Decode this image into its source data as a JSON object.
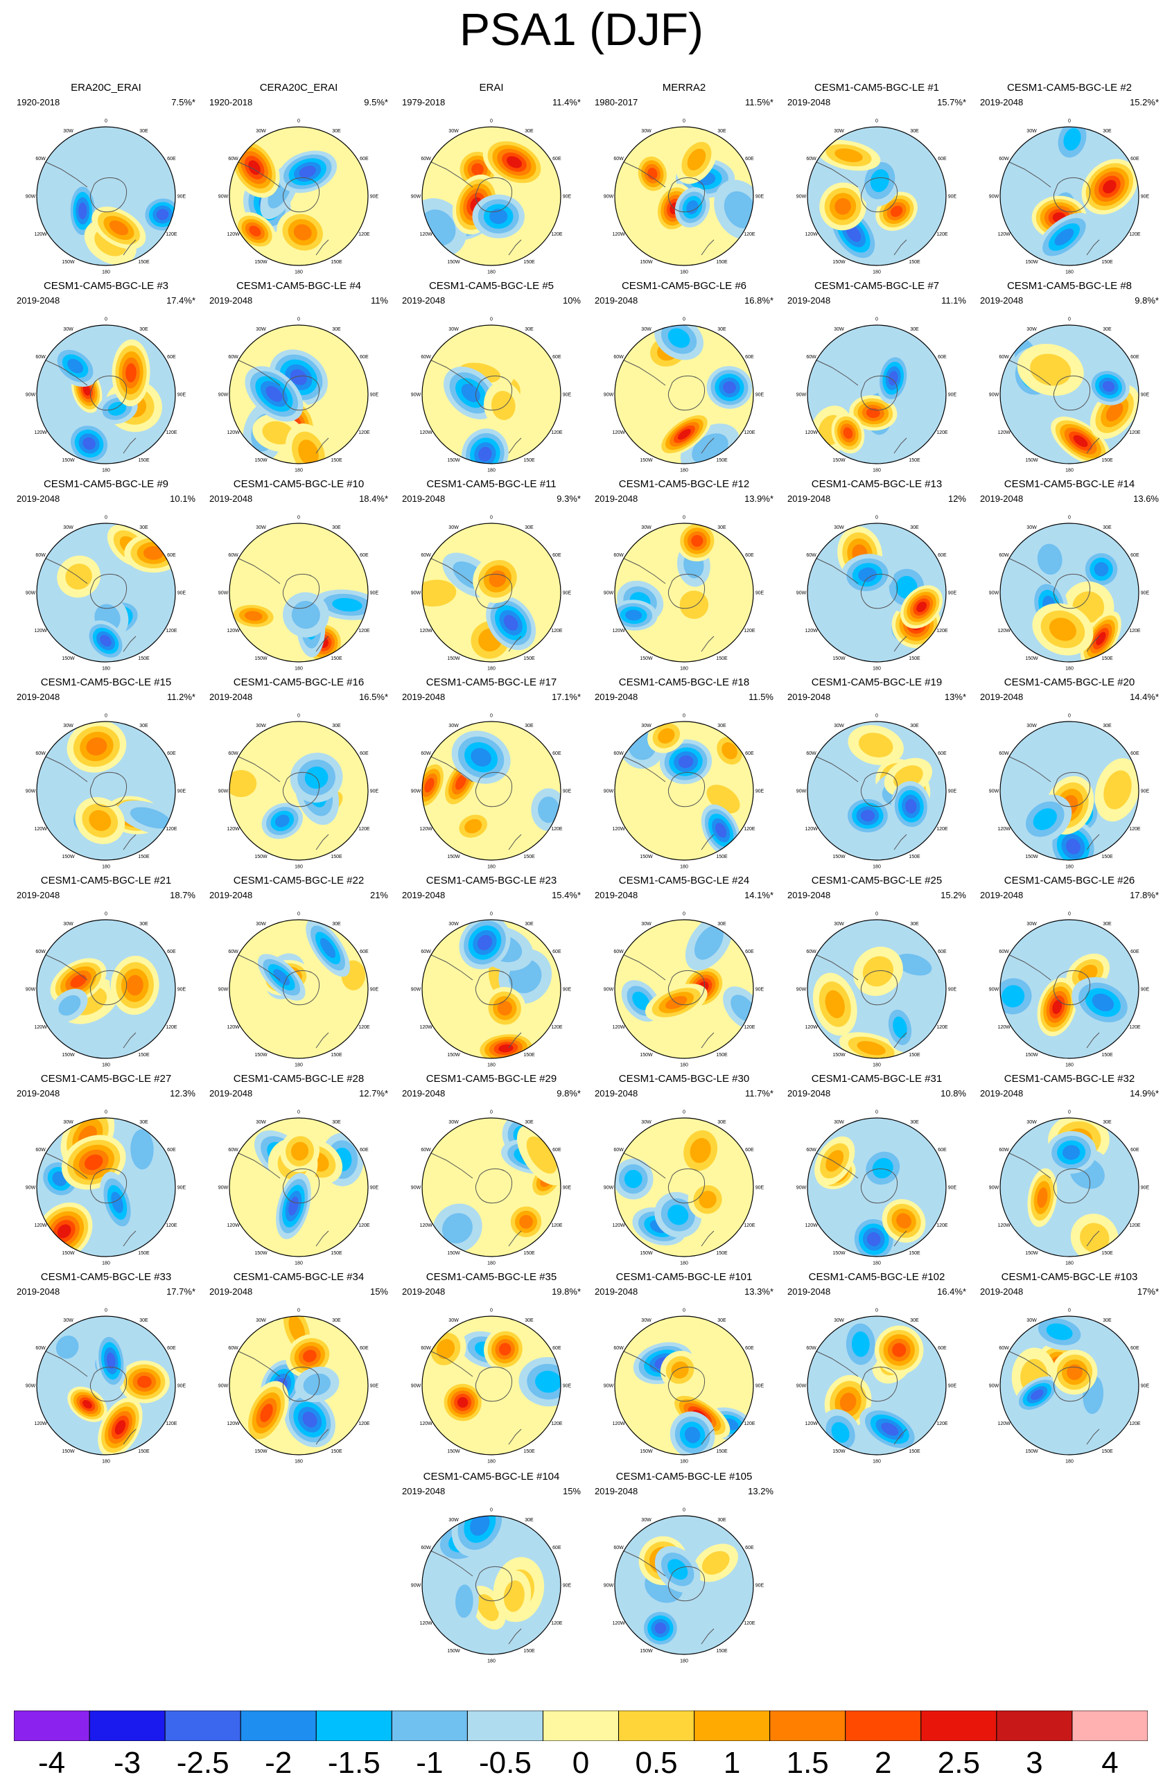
{
  "title": "PSA1 (DJF)",
  "maps": [
    {
      "name": "ERA20C_ERAI",
      "period": "1920-2018",
      "variance": "7.5%*"
    },
    {
      "name": "CERA20C_ERAI",
      "period": "1920-2018",
      "variance": "9.5%*"
    },
    {
      "name": "ERAI",
      "period": "1979-2018",
      "variance": "11.4%*"
    },
    {
      "name": "MERRA2",
      "period": "1980-2017",
      "variance": "11.5%*"
    },
    {
      "name": "CESM1-CAM5-BGC-LE #1",
      "period": "2019-2048",
      "variance": "15.7%*"
    },
    {
      "name": "CESM1-CAM5-BGC-LE #2",
      "period": "2019-2048",
      "variance": "15.2%*"
    },
    {
      "name": "CESM1-CAM5-BGC-LE #3",
      "period": "2019-2048",
      "variance": "17.4%*"
    },
    {
      "name": "CESM1-CAM5-BGC-LE #4",
      "period": "2019-2048",
      "variance": "11%"
    },
    {
      "name": "CESM1-CAM5-BGC-LE #5",
      "period": "2019-2048",
      "variance": "10%"
    },
    {
      "name": "CESM1-CAM5-BGC-LE #6",
      "period": "2019-2048",
      "variance": "16.8%*"
    },
    {
      "name": "CESM1-CAM5-BGC-LE #7",
      "period": "2019-2048",
      "variance": "11.1%"
    },
    {
      "name": "CESM1-CAM5-BGC-LE #8",
      "period": "2019-2048",
      "variance": "9.8%*"
    },
    {
      "name": "CESM1-CAM5-BGC-LE #9",
      "period": "2019-2048",
      "variance": "10.1%"
    },
    {
      "name": "CESM1-CAM5-BGC-LE #10",
      "period": "2019-2048",
      "variance": "18.4%*"
    },
    {
      "name": "CESM1-CAM5-BGC-LE #11",
      "period": "2019-2048",
      "variance": "9.3%*"
    },
    {
      "name": "CESM1-CAM5-BGC-LE #12",
      "period": "2019-2048",
      "variance": "13.9%*"
    },
    {
      "name": "CESM1-CAM5-BGC-LE #13",
      "period": "2019-2048",
      "variance": "12%"
    },
    {
      "name": "CESM1-CAM5-BGC-LE #14",
      "period": "2019-2048",
      "variance": "13.6%"
    },
    {
      "name": "CESM1-CAM5-BGC-LE #15",
      "period": "2019-2048",
      "variance": "11.2%*"
    },
    {
      "name": "CESM1-CAM5-BGC-LE #16",
      "period": "2019-2048",
      "variance": "16.5%*"
    },
    {
      "name": "CESM1-CAM5-BGC-LE #17",
      "period": "2019-2048",
      "variance": "17.1%*"
    },
    {
      "name": "CESM1-CAM5-BGC-LE #18",
      "period": "2019-2048",
      "variance": "11.5%"
    },
    {
      "name": "CESM1-CAM5-BGC-LE #19",
      "period": "2019-2048",
      "variance": "13%*"
    },
    {
      "name": "CESM1-CAM5-BGC-LE #20",
      "period": "2019-2048",
      "variance": "14.4%*"
    },
    {
      "name": "CESM1-CAM5-BGC-LE #21",
      "period": "2019-2048",
      "variance": "18.7%"
    },
    {
      "name": "CESM1-CAM5-BGC-LE #22",
      "period": "2019-2048",
      "variance": "21%"
    },
    {
      "name": "CESM1-CAM5-BGC-LE #23",
      "period": "2019-2048",
      "variance": "15.4%*"
    },
    {
      "name": "CESM1-CAM5-BGC-LE #24",
      "period": "2019-2048",
      "variance": "14.1%*"
    },
    {
      "name": "CESM1-CAM5-BGC-LE #25",
      "period": "2019-2048",
      "variance": "15.2%"
    },
    {
      "name": "CESM1-CAM5-BGC-LE #26",
      "period": "2019-2048",
      "variance": "17.8%*"
    },
    {
      "name": "CESM1-CAM5-BGC-LE #27",
      "period": "2019-2048",
      "variance": "12.3%"
    },
    {
      "name": "CESM1-CAM5-BGC-LE #28",
      "period": "2019-2048",
      "variance": "12.7%*"
    },
    {
      "name": "CESM1-CAM5-BGC-LE #29",
      "period": "2019-2048",
      "variance": "9.8%*"
    },
    {
      "name": "CESM1-CAM5-BGC-LE #30",
      "period": "2019-2048",
      "variance": "11.7%*"
    },
    {
      "name": "CESM1-CAM5-BGC-LE #31",
      "period": "2019-2048",
      "variance": "10.8%"
    },
    {
      "name": "CESM1-CAM5-BGC-LE #32",
      "period": "2019-2048",
      "variance": "14.9%*"
    },
    {
      "name": "CESM1-CAM5-BGC-LE #33",
      "period": "2019-2048",
      "variance": "17.7%*"
    },
    {
      "name": "CESM1-CAM5-BGC-LE #34",
      "period": "2019-2048",
      "variance": "15%"
    },
    {
      "name": "CESM1-CAM5-BGC-LE #35",
      "period": "2019-2048",
      "variance": "19.8%*"
    },
    {
      "name": "CESM1-CAM5-BGC-LE #101",
      "period": "2019-2048",
      "variance": "13.3%*"
    },
    {
      "name": "CESM1-CAM5-BGC-LE #102",
      "period": "2019-2048",
      "variance": "16.4%*"
    },
    {
      "name": "CESM1-CAM5-BGC-LE #103",
      "period": "2019-2048",
      "variance": "17%*"
    },
    {
      "name": "CESM1-CAM5-BGC-LE #104",
      "period": "2019-2048",
      "variance": "15%"
    },
    {
      "name": "CESM1-CAM5-BGC-LE #105",
      "period": "2019-2048",
      "variance": "13.2%"
    }
  ],
  "longitude_labels": [
    "0",
    "30W",
    "30E",
    "60W",
    "60E",
    "90W",
    "90E",
    "120W",
    "120E",
    "150W",
    "150E",
    "180"
  ],
  "colorbar": {
    "colors": [
      "#8b22ee",
      "#1a1aee",
      "#3b66ee",
      "#1e8ef0",
      "#00bfff",
      "#70c0f0",
      "#b0dcf0",
      "#fff8a0",
      "#ffd53a",
      "#ffaa00",
      "#ff7f00",
      "#ff4a00",
      "#e8160a",
      "#c81818",
      "#ffb0b0"
    ],
    "labels": [
      "-4",
      "-3",
      "-2.5",
      "-2",
      "-1.5",
      "-1",
      "-0.5",
      "0",
      "0.5",
      "1",
      "1.5",
      "2",
      "2.5",
      "3",
      "4"
    ]
  }
}
